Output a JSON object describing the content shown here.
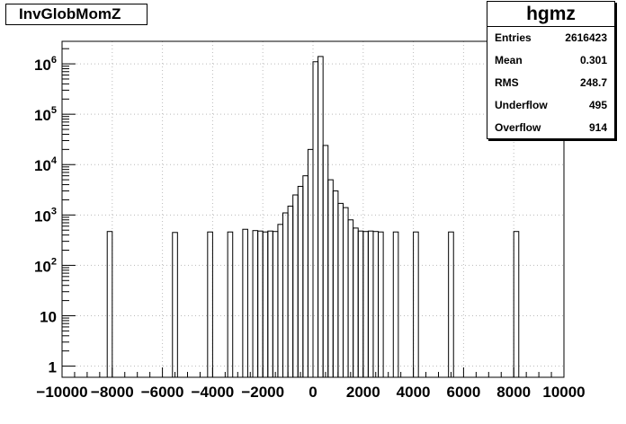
{
  "chart_data": {
    "type": "bar",
    "title": "InvGlobMomZ",
    "xlabel": "",
    "ylabel": "",
    "xlim": [
      -10000,
      10000
    ],
    "ylim": [
      0.6,
      2800000
    ],
    "yscale": "log",
    "grid": true,
    "x_ticks": [
      {
        "value": -10000,
        "label": "−10000"
      },
      {
        "value": -8000,
        "label": "−8000"
      },
      {
        "value": -6000,
        "label": "−6000"
      },
      {
        "value": -4000,
        "label": "−4000"
      },
      {
        "value": -2000,
        "label": "−2000"
      },
      {
        "value": 0,
        "label": "0"
      },
      {
        "value": 2000,
        "label": "2000"
      },
      {
        "value": 4000,
        "label": "4000"
      },
      {
        "value": 6000,
        "label": "6000"
      },
      {
        "value": 8000,
        "label": "8000"
      },
      {
        "value": 10000,
        "label": "10000"
      }
    ],
    "y_ticks": [
      {
        "value": 1,
        "base": "1",
        "exp": ""
      },
      {
        "value": 10,
        "base": "10",
        "exp": ""
      },
      {
        "value": 100,
        "base": "10",
        "exp": "2"
      },
      {
        "value": 1000,
        "base": "10",
        "exp": "3"
      },
      {
        "value": 10000,
        "base": "10",
        "exp": "4"
      },
      {
        "value": 100000,
        "base": "10",
        "exp": "5"
      },
      {
        "value": 1000000,
        "base": "10",
        "exp": "6"
      }
    ],
    "bin_width": 200,
    "series": [
      {
        "bins": [
          {
            "x": -8200,
            "y": 470
          },
          {
            "x": -5600,
            "y": 450
          },
          {
            "x": -4200,
            "y": 460
          },
          {
            "x": -3400,
            "y": 460
          },
          {
            "x": -2800,
            "y": 520
          },
          {
            "x": -2400,
            "y": 490
          },
          {
            "x": -2200,
            "y": 480
          },
          {
            "x": -2000,
            "y": 460
          },
          {
            "x": -1800,
            "y": 480
          },
          {
            "x": -1600,
            "y": 470
          },
          {
            "x": -1400,
            "y": 650
          },
          {
            "x": -1200,
            "y": 1100
          },
          {
            "x": -1000,
            "y": 1500
          },
          {
            "x": -800,
            "y": 2500
          },
          {
            "x": -600,
            "y": 3700
          },
          {
            "x": -400,
            "y": 6000
          },
          {
            "x": -200,
            "y": 20000
          },
          {
            "x": 0,
            "y": 1100000
          },
          {
            "x": 200,
            "y": 1400000
          },
          {
            "x": 400,
            "y": 24000
          },
          {
            "x": 600,
            "y": 5000
          },
          {
            "x": 800,
            "y": 3000
          },
          {
            "x": 1000,
            "y": 1700
          },
          {
            "x": 1200,
            "y": 1400
          },
          {
            "x": 1400,
            "y": 800
          },
          {
            "x": 1600,
            "y": 550
          },
          {
            "x": 1800,
            "y": 480
          },
          {
            "x": 2000,
            "y": 470
          },
          {
            "x": 2200,
            "y": 480
          },
          {
            "x": 2400,
            "y": 470
          },
          {
            "x": 2600,
            "y": 460
          },
          {
            "x": 3200,
            "y": 460
          },
          {
            "x": 4000,
            "y": 460
          },
          {
            "x": 5400,
            "y": 460
          },
          {
            "x": 8000,
            "y": 470
          }
        ]
      }
    ],
    "stats": {
      "name": "hgmz",
      "rows": [
        {
          "label": "Entries",
          "value": "2616423"
        },
        {
          "label": "Mean",
          "value": "0.301"
        },
        {
          "label": "RMS",
          "value": "248.7"
        },
        {
          "label": "Underflow",
          "value": "495"
        },
        {
          "label": "Overflow",
          "value": "914"
        }
      ]
    },
    "legend_position": "top-right"
  }
}
